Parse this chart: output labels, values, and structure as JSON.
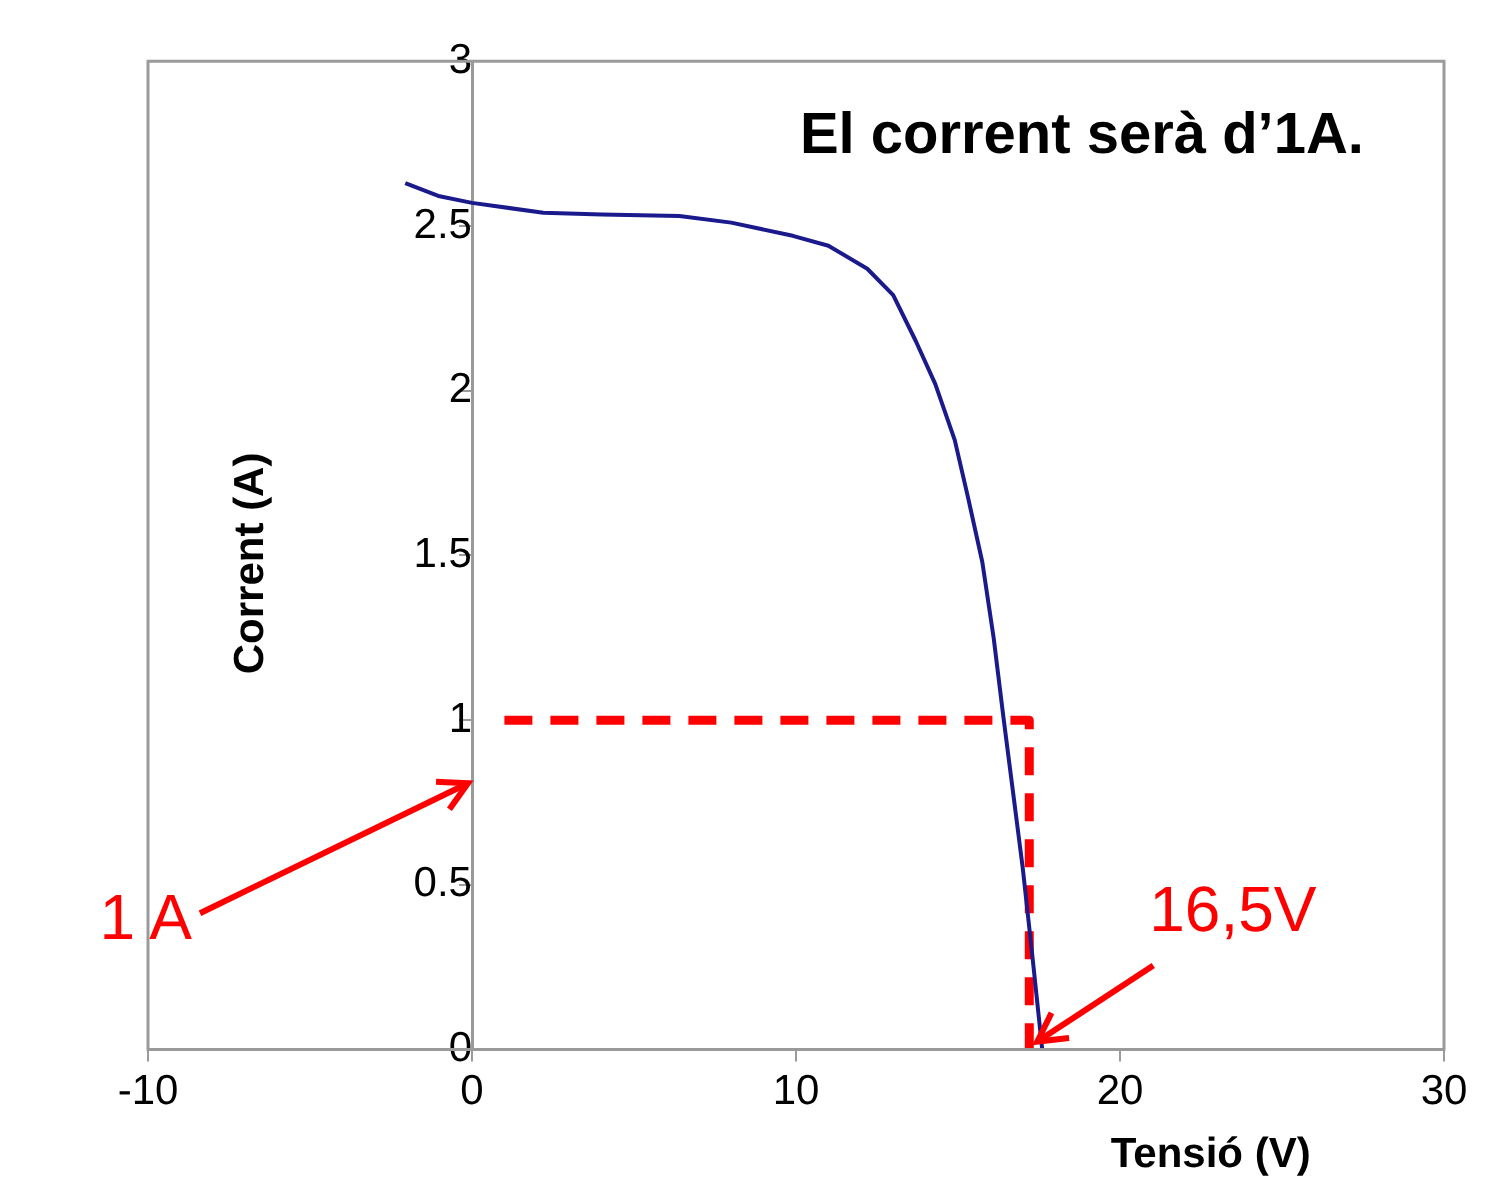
{
  "chart_data": {
    "type": "line",
    "title": "El corrent serà d’1A.",
    "xlabel": "Tensió (V)",
    "ylabel": "Corrent (A)",
    "marker": "none",
    "xlim": [
      -10,
      30
    ],
    "ylim": [
      0,
      3
    ],
    "xticks": [
      -10,
      0,
      10,
      20,
      30
    ],
    "yticks": [
      0,
      0.5,
      1,
      1.5,
      2,
      2.5,
      3
    ],
    "series": [
      {
        "color": "#1a1a8c",
        "line_style": "solid",
        "x": [
          -2.06,
          -1,
          0,
          2.2,
          4,
          6.4,
          8,
          9.9,
          11,
          12.2,
          13,
          13.7,
          14.3,
          14.9,
          15.3,
          15.75,
          16.1,
          16.4,
          16.7,
          17,
          17.3,
          17.6
        ],
        "values": [
          2.63,
          2.59,
          2.57,
          2.54,
          2.535,
          2.53,
          2.51,
          2.47,
          2.44,
          2.37,
          2.29,
          2.15,
          2.02,
          1.85,
          1.68,
          1.48,
          1.25,
          1.01,
          0.78,
          0.55,
          0.28,
          0
        ]
      },
      {
        "color": "#ff0000",
        "line_style": "dashed",
        "x": [
          1,
          17.2,
          17.2
        ],
        "values": [
          1,
          1,
          0
        ]
      }
    ],
    "annotations": [
      "1 A",
      {
        "text": "16,5V",
        "x": 17.2,
        "y": 0
      }
    ]
  }
}
